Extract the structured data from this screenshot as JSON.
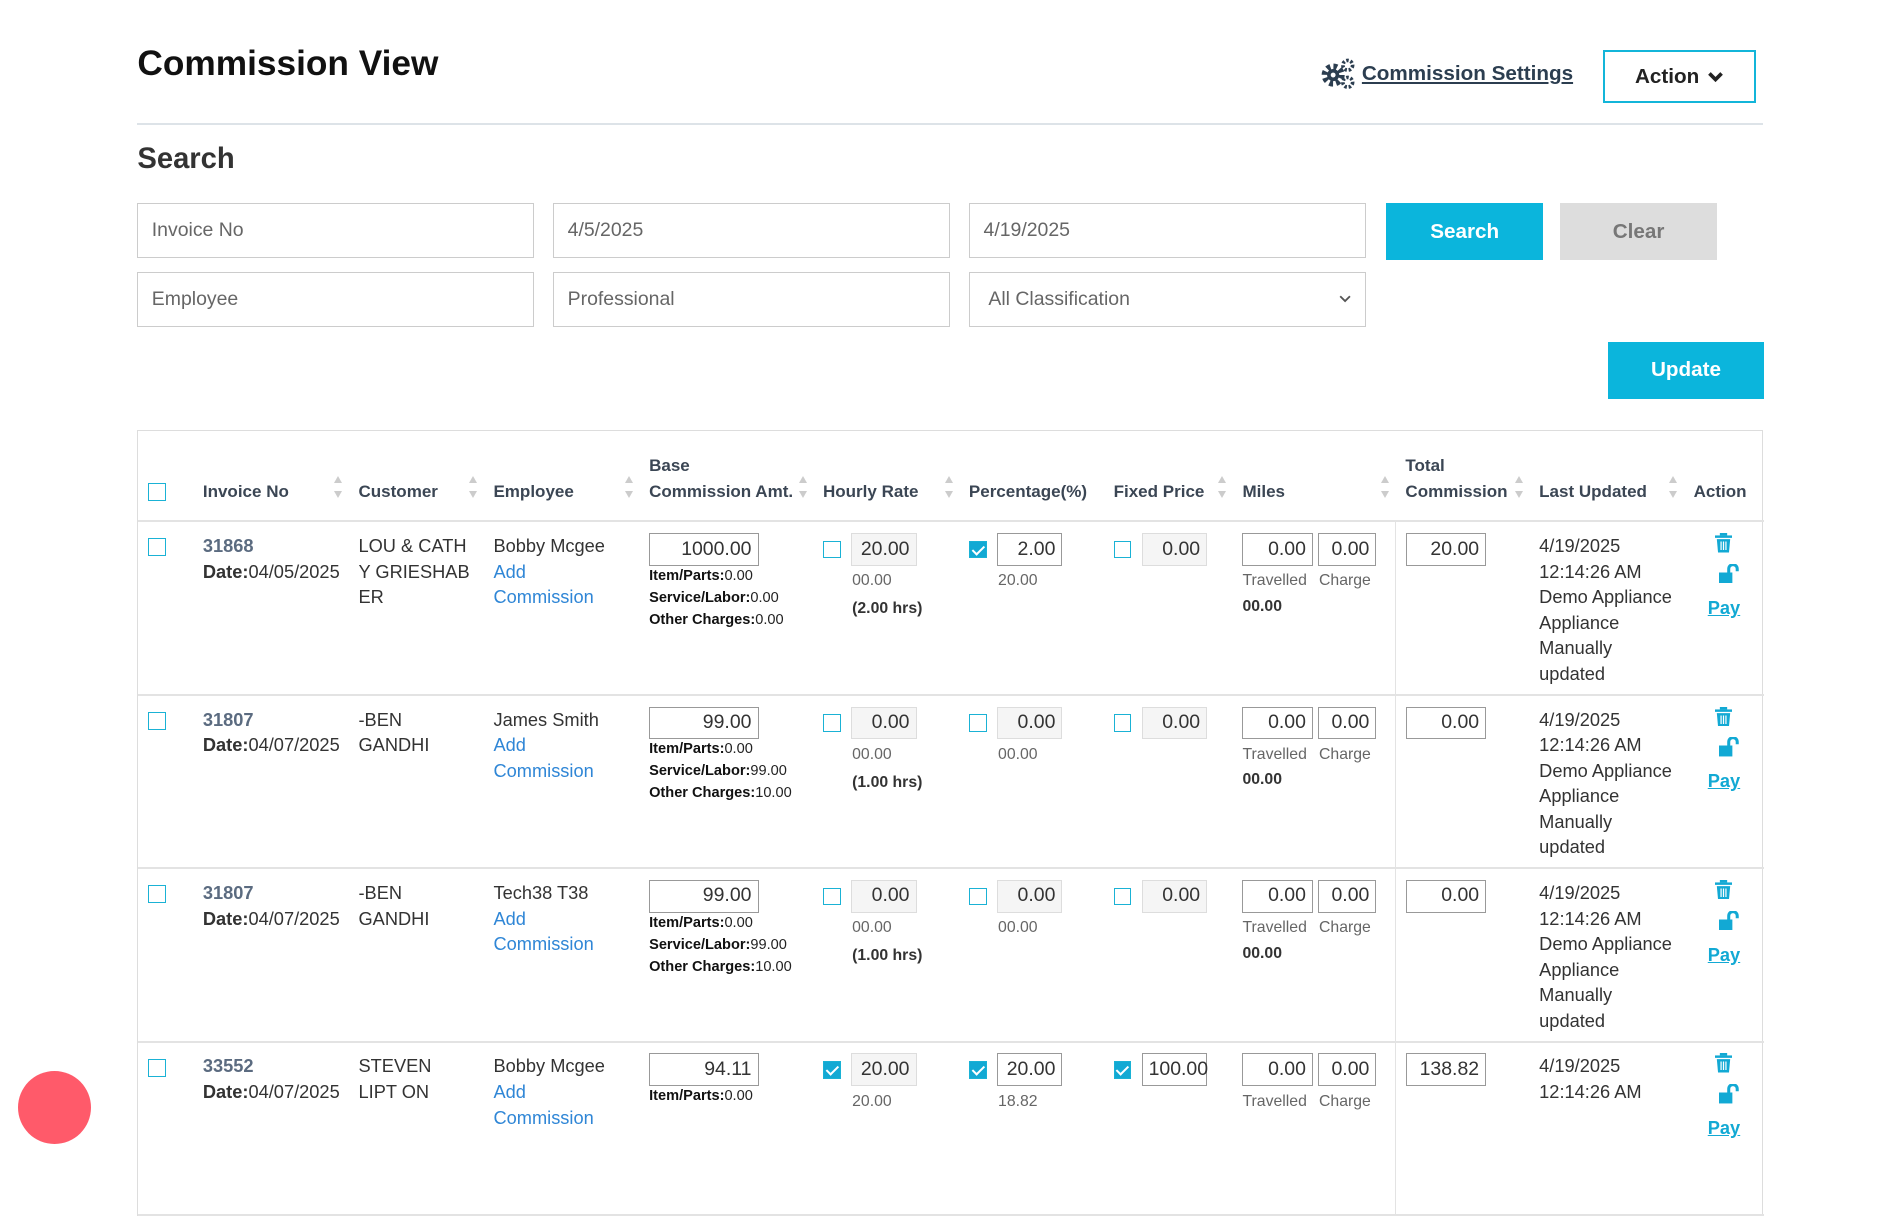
{
  "header": {
    "title": "Commission View",
    "settings_label": "Commission Settings",
    "action_label": "Action"
  },
  "search": {
    "title": "Search",
    "invoice_placeholder": "Invoice No",
    "date_from": "4/5/2025",
    "date_to": "4/19/2025",
    "employee_placeholder": "Employee",
    "professional_placeholder": "Professional",
    "classification": "All Classification",
    "search_label": "Search",
    "clear_label": "Clear",
    "update_label": "Update"
  },
  "colors": {
    "accent": "#0bb5dc",
    "clear": "#dddddd",
    "chat": "#ff5a6a"
  },
  "table": {
    "columns": [
      "Invoice No",
      "Customer",
      "Employee",
      "Base Commission Amt.",
      "Hourly Rate",
      "Percentage(%)",
      "Fixed Price",
      "Miles",
      "Total Commission",
      "Last Updated",
      "Action"
    ],
    "labels": {
      "date": "Date:",
      "add_commission": "Add Commission",
      "items": "Item/Parts:",
      "service": "Service/Labor:",
      "other": "Other Charges:",
      "travelled": "Travelled",
      "charge": "Charge",
      "pay": "Pay"
    },
    "rows": [
      {
        "invoice": "31868",
        "date": "04/05/2025",
        "customer": "LOU & CATH Y GRIESHAB ER",
        "employee": "Bobby Mcgee",
        "base": "1000.00",
        "items": "0.00",
        "service": "0.00",
        "other": "0.00",
        "hourly_on": false,
        "hourly": "20.00",
        "hourly_sub": "00.00",
        "hours": "(2.00 hrs)",
        "pct_on": true,
        "pct": "2.00",
        "pct_sub": "20.00",
        "fixed_on": false,
        "fixed": "0.00",
        "miles": "0.00",
        "charge": "0.00",
        "miles_total": "00.00",
        "total": "20.00",
        "updated": "4/19/2025 12:14:26 AM Demo Appliance Appliance Manually updated"
      },
      {
        "invoice": "31807",
        "date": "04/07/2025",
        "customer": "-BEN GANDHI",
        "employee": "James Smith",
        "base": "99.00",
        "items": "0.00",
        "service": "99.00",
        "other": "10.00",
        "hourly_on": false,
        "hourly": "0.00",
        "hourly_sub": "00.00",
        "hours": "(1.00 hrs)",
        "pct_on": false,
        "pct": "0.00",
        "pct_sub": "00.00",
        "fixed_on": false,
        "fixed": "0.00",
        "miles": "0.00",
        "charge": "0.00",
        "miles_total": "00.00",
        "total": "0.00",
        "updated": "4/19/2025 12:14:26 AM Demo Appliance Appliance Manually updated"
      },
      {
        "invoice": "31807",
        "date": "04/07/2025",
        "customer": "-BEN GANDHI",
        "employee": "Tech38 T38",
        "base": "99.00",
        "items": "0.00",
        "service": "99.00",
        "other": "10.00",
        "hourly_on": false,
        "hourly": "0.00",
        "hourly_sub": "00.00",
        "hours": "(1.00 hrs)",
        "pct_on": false,
        "pct": "0.00",
        "pct_sub": "00.00",
        "fixed_on": false,
        "fixed": "0.00",
        "miles": "0.00",
        "charge": "0.00",
        "miles_total": "00.00",
        "total": "0.00",
        "updated": "4/19/2025 12:14:26 AM Demo Appliance Appliance Manually updated"
      },
      {
        "invoice": "33552",
        "date": "04/07/2025",
        "customer": "STEVEN LIPT ON",
        "employee": "Bobby Mcgee",
        "base": "94.11",
        "items": "0.00",
        "hourly_on": true,
        "hourly": "20.00",
        "hourly_sub": "20.00",
        "pct_on": true,
        "pct": "20.00",
        "pct_sub": "18.82",
        "fixed_on": true,
        "fixed": "100.00",
        "miles": "0.00",
        "charge": "0.00",
        "total": "138.82",
        "updated": "4/19/2025 12:14:26 AM"
      }
    ]
  }
}
